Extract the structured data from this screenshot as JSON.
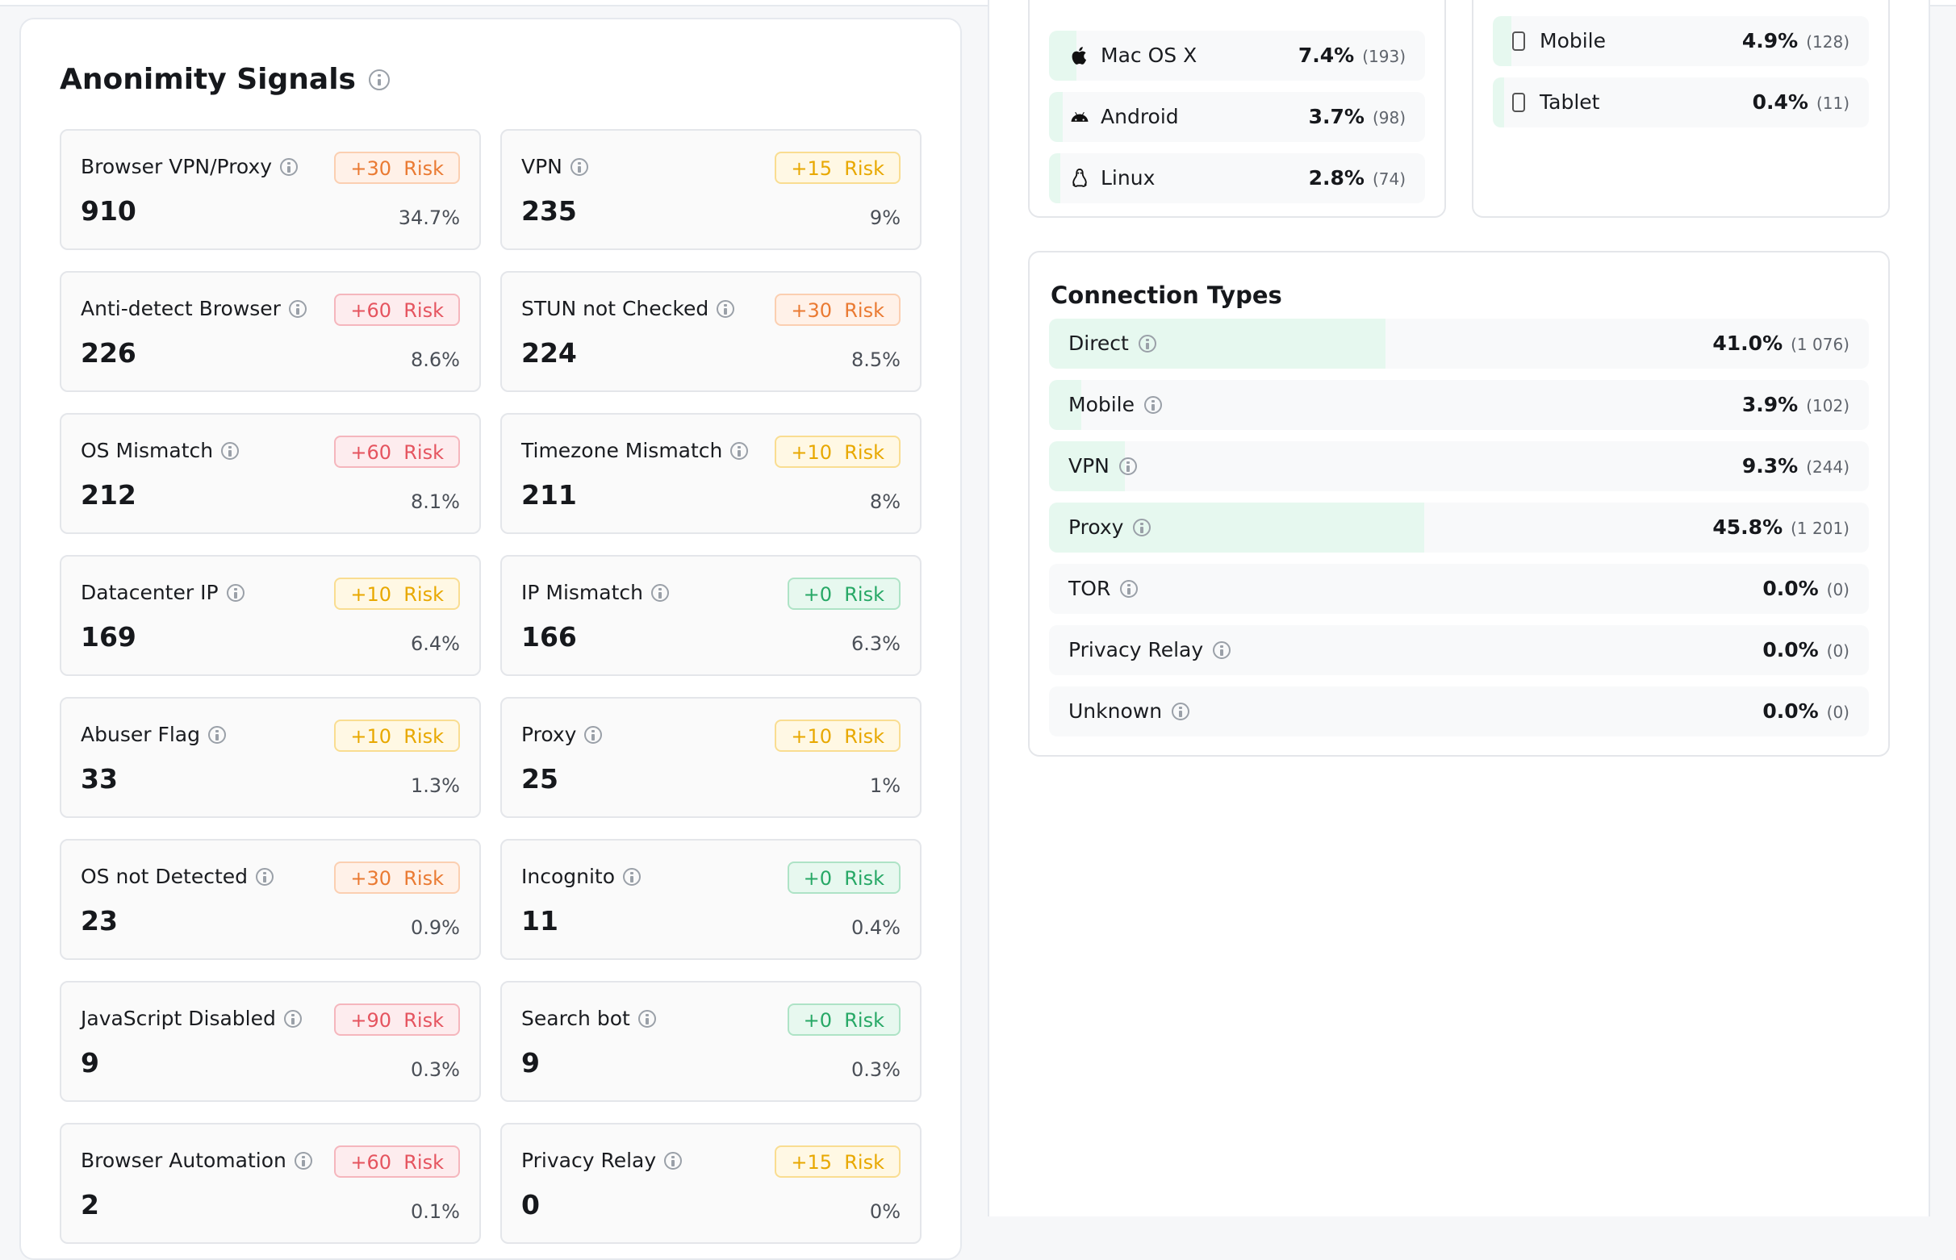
{
  "anonymity": {
    "title": "Anonimity Signals",
    "signals": [
      {
        "name": "Browser VPN/Proxy",
        "risk": "+30",
        "risk_word": "Risk",
        "level": "orange",
        "count": "910",
        "pct": "34.7%"
      },
      {
        "name": "VPN",
        "risk": "+15",
        "risk_word": "Risk",
        "level": "yellow",
        "count": "235",
        "pct": "9%"
      },
      {
        "name": "Anti-detect Browser",
        "risk": "+60",
        "risk_word": "Risk",
        "level": "red",
        "count": "226",
        "pct": "8.6%"
      },
      {
        "name": "STUN not Checked",
        "risk": "+30",
        "risk_word": "Risk",
        "level": "orange",
        "count": "224",
        "pct": "8.5%"
      },
      {
        "name": "OS Mismatch",
        "risk": "+60",
        "risk_word": "Risk",
        "level": "red",
        "count": "212",
        "pct": "8.1%"
      },
      {
        "name": "Timezone Mismatch",
        "risk": "+10",
        "risk_word": "Risk",
        "level": "yellow",
        "count": "211",
        "pct": "8%"
      },
      {
        "name": "Datacenter IP",
        "risk": "+10",
        "risk_word": "Risk",
        "level": "yellow",
        "count": "169",
        "pct": "6.4%"
      },
      {
        "name": "IP Mismatch",
        "risk": "+0",
        "risk_word": "Risk",
        "level": "green",
        "count": "166",
        "pct": "6.3%"
      },
      {
        "name": "Abuser Flag",
        "risk": "+10",
        "risk_word": "Risk",
        "level": "yellow",
        "count": "33",
        "pct": "1.3%"
      },
      {
        "name": "Proxy",
        "risk": "+10",
        "risk_word": "Risk",
        "level": "yellow",
        "count": "25",
        "pct": "1%"
      },
      {
        "name": "OS not Detected",
        "risk": "+30",
        "risk_word": "Risk",
        "level": "orange",
        "count": "23",
        "pct": "0.9%"
      },
      {
        "name": "Incognito",
        "risk": "+0",
        "risk_word": "Risk",
        "level": "green",
        "count": "11",
        "pct": "0.4%"
      },
      {
        "name": "JavaScript Disabled",
        "risk": "+90",
        "risk_word": "Risk",
        "level": "red",
        "count": "9",
        "pct": "0.3%"
      },
      {
        "name": "Search bot",
        "risk": "+0",
        "risk_word": "Risk",
        "level": "green",
        "count": "9",
        "pct": "0.3%"
      },
      {
        "name": "Browser Automation",
        "risk": "+60",
        "risk_word": "Risk",
        "level": "red",
        "count": "2",
        "pct": "0.1%"
      },
      {
        "name": "Privacy Relay",
        "risk": "+15",
        "risk_word": "Risk",
        "level": "yellow",
        "count": "0",
        "pct": "0%"
      }
    ]
  },
  "os": {
    "items": [
      {
        "name": "Mac OS X",
        "icon": "apple-icon",
        "pct": "7.4%",
        "count": "(193)",
        "share": 7.4
      },
      {
        "name": "Android",
        "icon": "android-icon",
        "pct": "3.7%",
        "count": "(98)",
        "share": 3.7
      },
      {
        "name": "Linux",
        "icon": "linux-icon",
        "pct": "2.8%",
        "count": "(74)",
        "share": 2.8
      }
    ]
  },
  "devices": {
    "items": [
      {
        "name": "Mobile",
        "icon": "mobile-device-icon",
        "pct": "4.9%",
        "count": "(128)",
        "share": 4.9
      },
      {
        "name": "Tablet",
        "icon": "tablet-device-icon",
        "pct": "0.4%",
        "count": "(11)",
        "share": 0.4
      }
    ]
  },
  "connections": {
    "title": "Connection Types",
    "items": [
      {
        "name": "Direct",
        "pct": "41.0%",
        "count": "(1 076)",
        "share": 41.0
      },
      {
        "name": "Mobile",
        "pct": "3.9%",
        "count": "(102)",
        "share": 3.9
      },
      {
        "name": "VPN",
        "pct": "9.3%",
        "count": "(244)",
        "share": 9.3
      },
      {
        "name": "Proxy",
        "pct": "45.8%",
        "count": "(1 201)",
        "share": 45.8
      },
      {
        "name": "TOR",
        "pct": "0.0%",
        "count": "(0)",
        "share": 0.0
      },
      {
        "name": "Privacy Relay",
        "pct": "0.0%",
        "count": "(0)",
        "share": 0.0
      },
      {
        "name": "Unknown",
        "pct": "0.0%",
        "count": "(0)",
        "share": 0.0
      }
    ]
  },
  "colors": {
    "bar": "#e6f8ef",
    "accent_green": "#27a866",
    "risk_red": "#e5545f",
    "risk_orange": "#ea7a32",
    "risk_yellow": "#e8a800"
  }
}
